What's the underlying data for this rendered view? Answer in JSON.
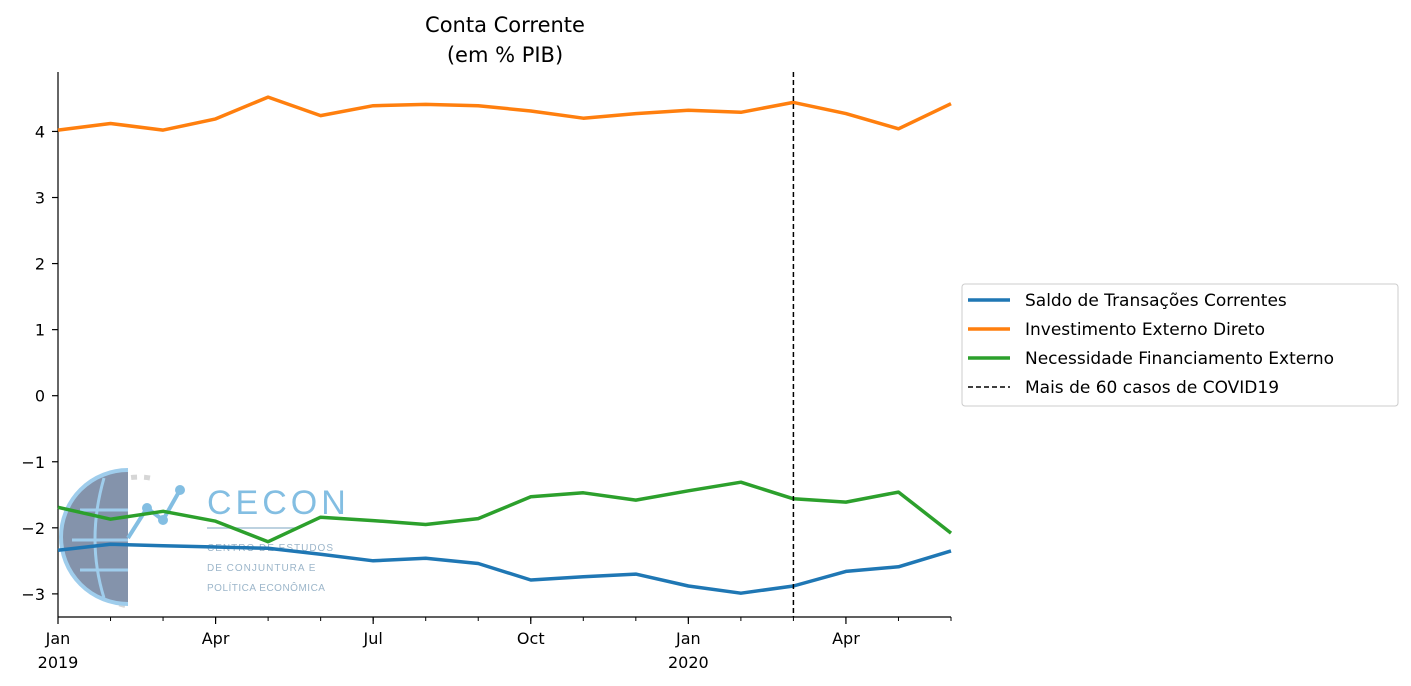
{
  "chart_data": {
    "type": "line",
    "title_line1": "Conta Corrente",
    "title_line2": "(em % PIB)",
    "xlabel": "",
    "ylabel": "",
    "ylim": [
      -3.35,
      4.9
    ],
    "yticks": [
      -3,
      -2,
      -1,
      0,
      1,
      2,
      3,
      4
    ],
    "ytick_labels": [
      "−3",
      "−2",
      "−1",
      "0",
      "1",
      "2",
      "3",
      "4"
    ],
    "x": [
      "2019-01",
      "2019-02",
      "2019-03",
      "2019-04",
      "2019-05",
      "2019-06",
      "2019-07",
      "2019-08",
      "2019-09",
      "2019-10",
      "2019-11",
      "2019-12",
      "2020-01",
      "2020-02",
      "2020-03",
      "2020-04",
      "2020-05",
      "2020-06"
    ],
    "xlim": [
      "2019-01",
      "2020-06"
    ],
    "xtick_labels": [
      {
        "x": "2019-01",
        "line1": "Jan",
        "line2": "2019"
      },
      {
        "x": "2019-04",
        "line1": "Apr",
        "line2": ""
      },
      {
        "x": "2019-07",
        "line1": "Jul",
        "line2": ""
      },
      {
        "x": "2019-10",
        "line1": "Oct",
        "line2": ""
      },
      {
        "x": "2020-01",
        "line1": "Jan",
        "line2": "2020"
      },
      {
        "x": "2020-04",
        "line1": "Apr",
        "line2": ""
      }
    ],
    "series": [
      {
        "name": "Saldo de Transações Correntes",
        "color": "#1f77b4",
        "values": [
          -2.34,
          -2.25,
          -2.27,
          -2.29,
          -2.31,
          -2.4,
          -2.5,
          -2.46,
          -2.54,
          -2.79,
          -2.74,
          -2.7,
          -2.88,
          -2.99,
          -2.88,
          -2.66,
          -2.59,
          -2.35
        ]
      },
      {
        "name": "Investimento Externo Direto",
        "color": "#ff7f0e",
        "values": [
          4.02,
          4.12,
          4.02,
          4.19,
          4.52,
          4.24,
          4.39,
          4.41,
          4.39,
          4.31,
          4.2,
          4.27,
          4.32,
          4.29,
          4.44,
          4.27,
          4.04,
          4.42
        ]
      },
      {
        "name": "Necessidade Financiamento Externo",
        "color": "#2ca02c",
        "values": [
          -1.69,
          -1.87,
          -1.75,
          -1.9,
          -2.21,
          -1.84,
          -1.89,
          -1.95,
          -1.86,
          -1.53,
          -1.47,
          -1.58,
          -1.44,
          -1.31,
          -1.56,
          -1.61,
          -1.46,
          -2.08
        ]
      }
    ],
    "vline": {
      "x": "2020-03",
      "name": "Mais de 60 casos de COVID19",
      "color": "#000000",
      "style": "dashed"
    },
    "legend_position": "right",
    "grid": false
  },
  "watermark": {
    "name": "CECON",
    "line1": "CENTRO DE ESTUDOS",
    "line2": "DE CONJUNTURA E",
    "line3": "POLÍTICA ECONÔMICA",
    "color": "#5aa9d9"
  }
}
